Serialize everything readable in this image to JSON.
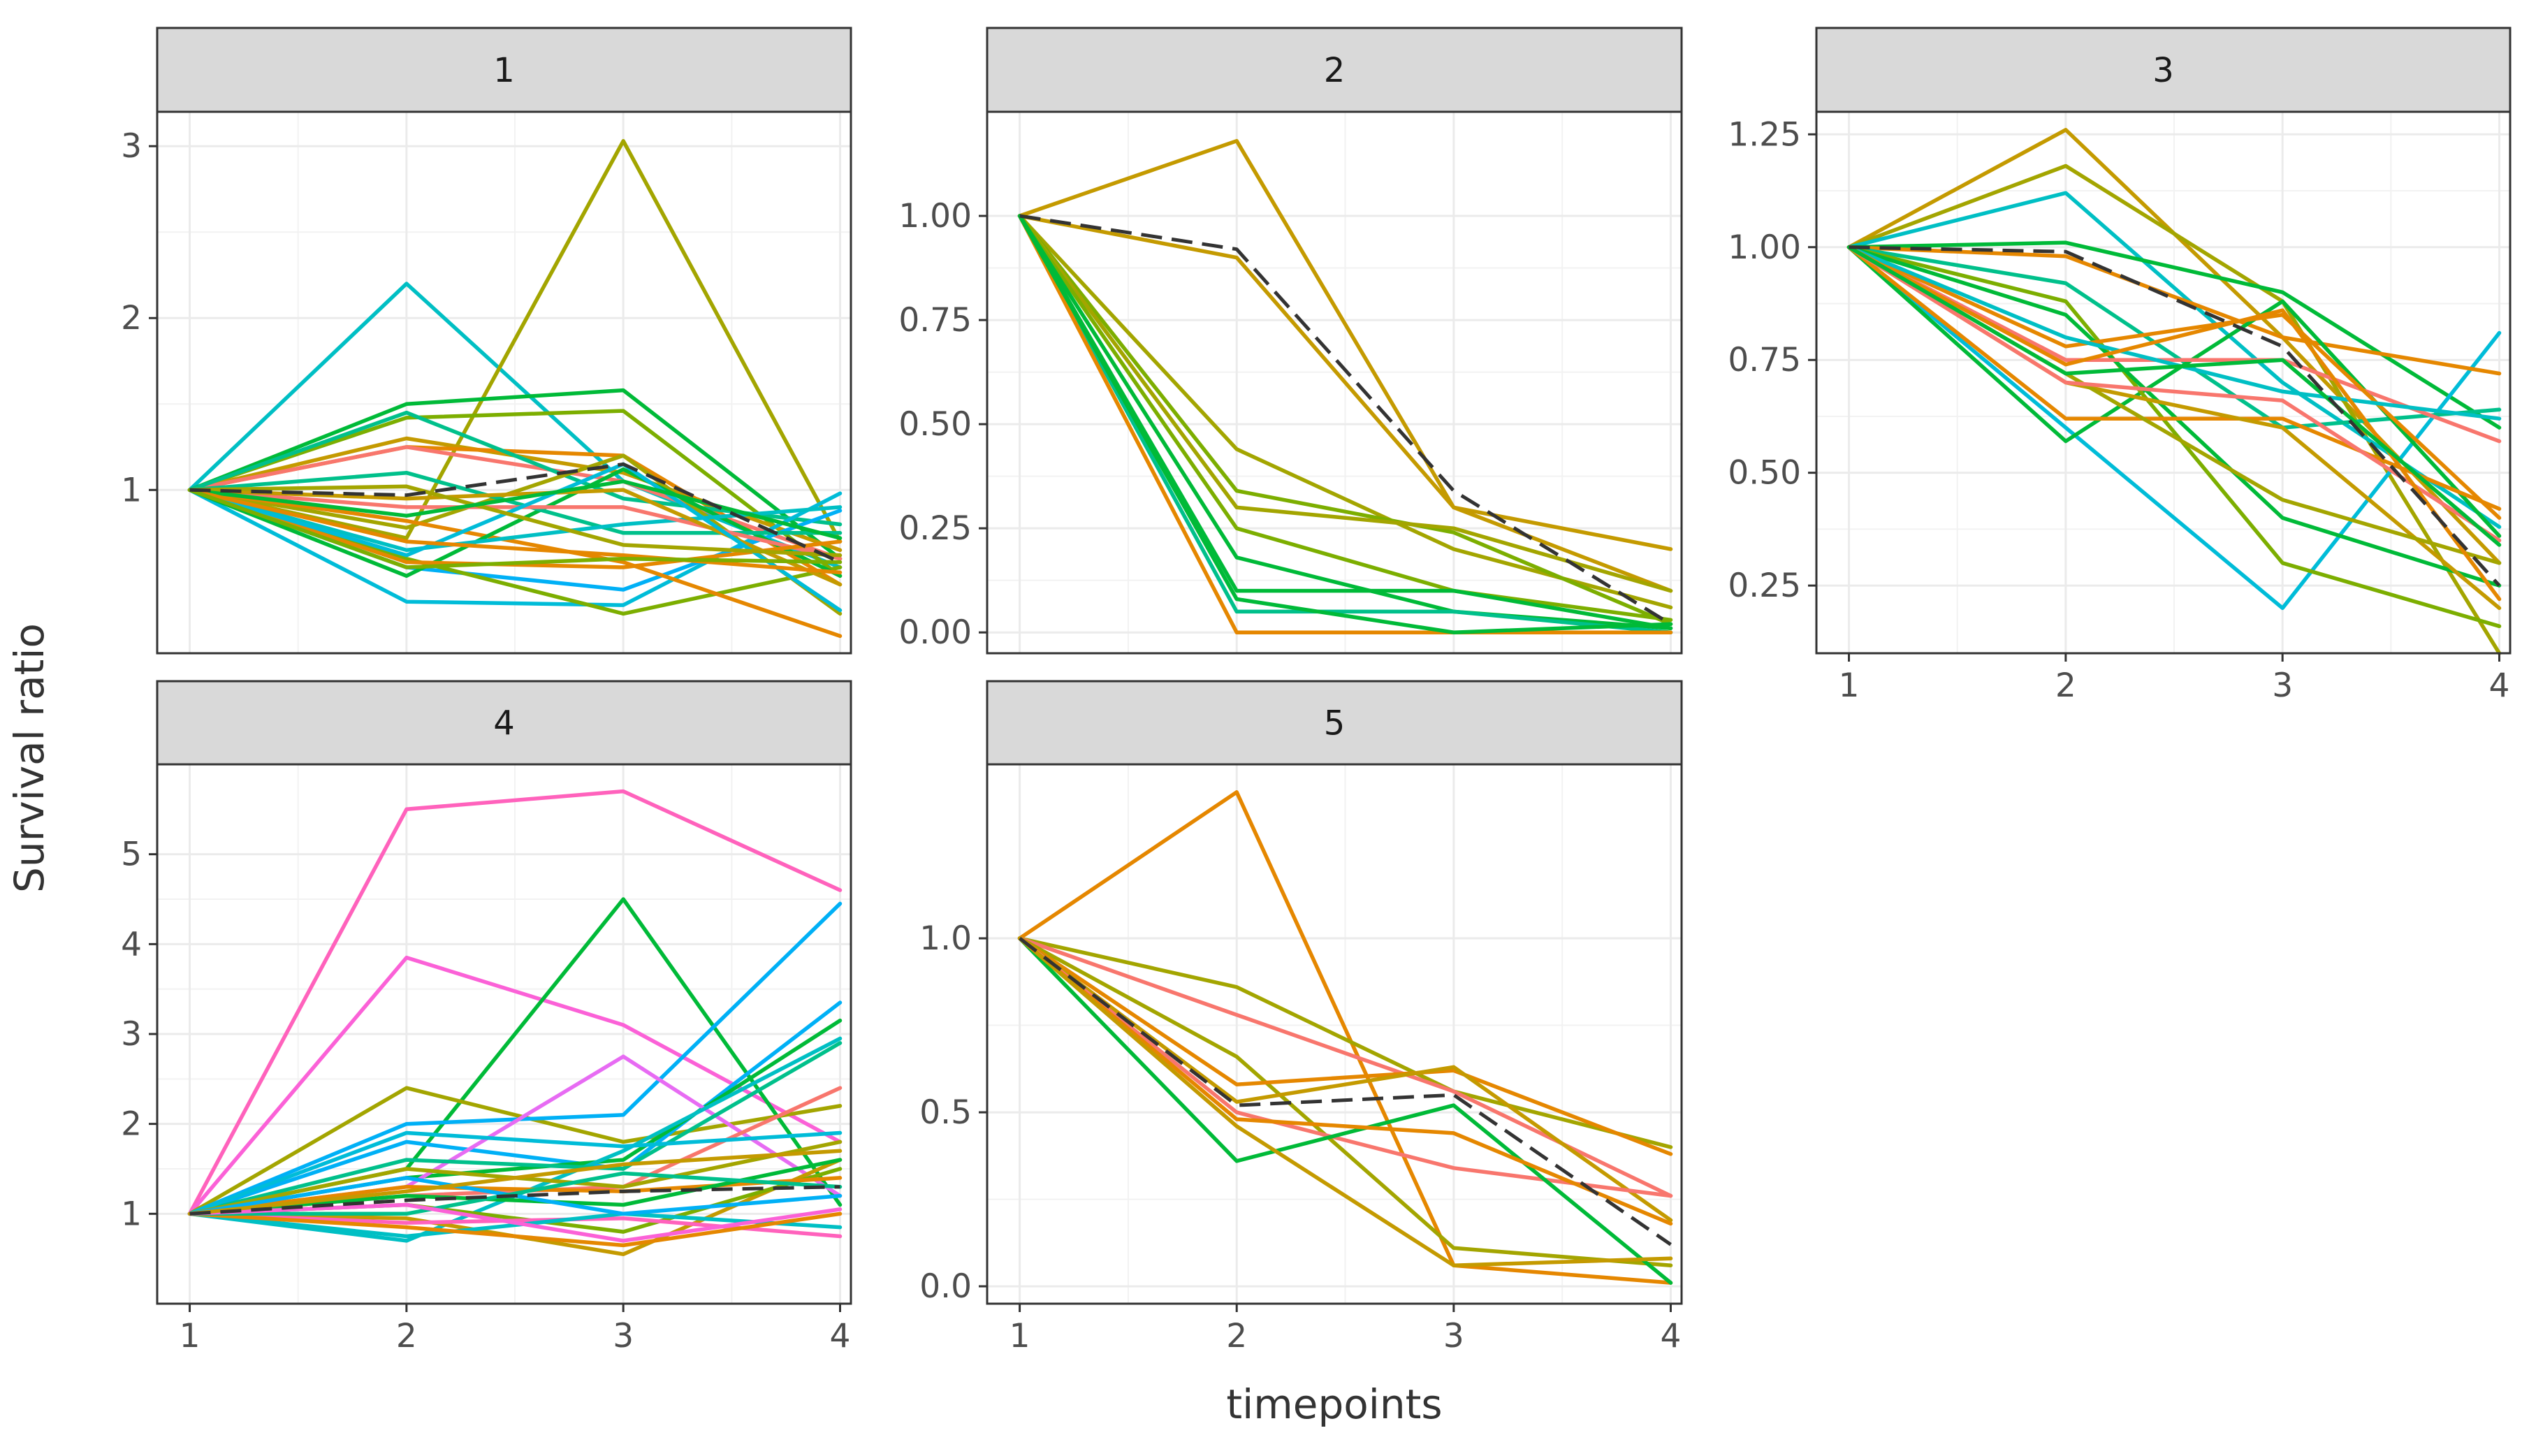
{
  "chart_data": {
    "type": "line",
    "xlabel": "timepoints",
    "ylabel": "Survival ratio",
    "x": [
      1,
      2,
      3,
      4
    ],
    "panels": [
      {
        "label": "1",
        "ylim": [
          0.05,
          3.2
        ],
        "yticks": [
          1,
          2,
          3
        ],
        "ytick_labels": [
          "1",
          "2",
          "3"
        ],
        "mean": [
          1.0,
          0.97,
          1.15,
          0.58
        ],
        "series": [
          {
            "color": "#00BFC4",
            "values": [
              1.0,
              2.2,
              1.05,
              0.55
            ]
          },
          {
            "color": "#A3A500",
            "values": [
              1.0,
              0.72,
              3.03,
              0.7
            ]
          },
          {
            "color": "#00BA38",
            "values": [
              1.0,
              1.5,
              1.58,
              0.6
            ]
          },
          {
            "color": "#7CAE00",
            "values": [
              1.0,
              1.42,
              1.46,
              0.5
            ]
          },
          {
            "color": "#C49A00",
            "values": [
              1.0,
              1.3,
              1.1,
              0.65
            ]
          },
          {
            "color": "#E58700",
            "values": [
              1.0,
              1.25,
              1.2,
              0.45
            ]
          },
          {
            "color": "#F8766D",
            "values": [
              1.0,
              1.25,
              1.05,
              0.6
            ]
          },
          {
            "color": "#00C08B",
            "values": [
              1.0,
              1.45,
              0.95,
              0.8
            ]
          },
          {
            "color": "#00BCD8",
            "values": [
              1.0,
              0.35,
              0.33,
              0.98
            ]
          },
          {
            "color": "#00B0F6",
            "values": [
              1.0,
              0.55,
              0.42,
              0.88
            ]
          },
          {
            "color": "#7CAE00",
            "values": [
              1.0,
              0.6,
              0.28,
              0.55
            ]
          },
          {
            "color": "#A3A500",
            "values": [
              1.0,
              0.78,
              1.2,
              0.28
            ]
          },
          {
            "color": "#E58700",
            "values": [
              1.0,
              0.82,
              0.58,
              0.15
            ]
          },
          {
            "color": "#00BA38",
            "values": [
              1.0,
              0.5,
              1.12,
              0.5
            ]
          },
          {
            "color": "#00C08B",
            "values": [
              1.0,
              1.1,
              0.75,
              0.75
            ]
          },
          {
            "color": "#00BFC4",
            "values": [
              1.0,
              0.65,
              0.8,
              0.9
            ]
          },
          {
            "color": "#F8766D",
            "values": [
              1.0,
              0.9,
              0.9,
              0.6
            ]
          },
          {
            "color": "#C49A00",
            "values": [
              1.0,
              0.95,
              1.0,
              0.45
            ]
          },
          {
            "color": "#E58700",
            "values": [
              1.0,
              0.58,
              0.55,
              0.7
            ]
          },
          {
            "color": "#00BCD8",
            "values": [
              1.0,
              0.62,
              1.15,
              0.3
            ]
          },
          {
            "color": "#A3A500",
            "values": [
              1.0,
              1.02,
              0.68,
              0.62
            ]
          },
          {
            "color": "#00BA38",
            "values": [
              1.0,
              0.85,
              1.05,
              0.72
            ]
          },
          {
            "color": "#E58700",
            "values": [
              1.0,
              0.7,
              0.62,
              0.52
            ]
          },
          {
            "color": "#7CAE00",
            "values": [
              1.0,
              0.55,
              0.6,
              0.58
            ]
          }
        ]
      },
      {
        "label": "2",
        "ylim": [
          -0.05,
          1.25
        ],
        "yticks": [
          0.0,
          0.25,
          0.5,
          0.75,
          1.0
        ],
        "ytick_labels": [
          "0.00",
          "0.25",
          "0.50",
          "0.75",
          "1.00"
        ],
        "mean": [
          1.0,
          0.92,
          0.34,
          0.02
        ],
        "series": [
          {
            "color": "#C49A00",
            "values": [
              1.0,
              1.18,
              0.3,
              0.2
            ]
          },
          {
            "color": "#C49A00",
            "values": [
              1.0,
              0.9,
              0.3,
              0.1
            ]
          },
          {
            "color": "#A3A500",
            "values": [
              1.0,
              0.44,
              0.2,
              0.06
            ]
          },
          {
            "color": "#7CAE00",
            "values": [
              1.0,
              0.34,
              0.24,
              0.02
            ]
          },
          {
            "color": "#A3A500",
            "values": [
              1.0,
              0.3,
              0.25,
              0.1
            ]
          },
          {
            "color": "#7CAE00",
            "values": [
              1.0,
              0.25,
              0.1,
              0.03
            ]
          },
          {
            "color": "#00BA38",
            "values": [
              1.0,
              0.18,
              0.05,
              0.01
            ]
          },
          {
            "color": "#00BA38",
            "values": [
              1.0,
              0.1,
              0.1,
              0.01
            ]
          },
          {
            "color": "#00C08B",
            "values": [
              1.0,
              0.05,
              0.05,
              0.0
            ]
          },
          {
            "color": "#E58700",
            "values": [
              1.0,
              0.0,
              0.0,
              0.0
            ]
          },
          {
            "color": "#00BA38",
            "values": [
              1.0,
              0.08,
              0.0,
              0.02
            ]
          }
        ]
      },
      {
        "label": "3",
        "ylim": [
          0.1,
          1.3
        ],
        "yticks": [
          0.25,
          0.5,
          0.75,
          1.0,
          1.25
        ],
        "ytick_labels": [
          "0.25",
          "0.50",
          "0.75",
          "1.00",
          "1.25"
        ],
        "mean": [
          1.0,
          0.99,
          0.78,
          0.25
        ],
        "series": [
          {
            "color": "#C49A00",
            "values": [
              1.0,
              1.26,
              0.8,
              0.3
            ]
          },
          {
            "color": "#A3A500",
            "values": [
              1.0,
              1.18,
              0.88,
              0.1
            ]
          },
          {
            "color": "#00BFC4",
            "values": [
              1.0,
              1.12,
              0.7,
              0.38
            ]
          },
          {
            "color": "#00BA38",
            "values": [
              1.0,
              1.01,
              0.9,
              0.6
            ]
          },
          {
            "color": "#00BCD8",
            "values": [
              1.0,
              0.6,
              0.2,
              0.81
            ]
          },
          {
            "color": "#E58700",
            "values": [
              1.0,
              0.98,
              0.8,
              0.72
            ]
          },
          {
            "color": "#00C08B",
            "values": [
              1.0,
              0.92,
              0.6,
              0.64
            ]
          },
          {
            "color": "#00BA38",
            "values": [
              1.0,
              0.57,
              0.88,
              0.36
            ]
          },
          {
            "color": "#7CAE00",
            "values": [
              1.0,
              0.88,
              0.3,
              0.16
            ]
          },
          {
            "color": "#00BA38",
            "values": [
              1.0,
              0.85,
              0.4,
              0.25
            ]
          },
          {
            "color": "#F8766D",
            "values": [
              1.0,
              0.75,
              0.75,
              0.57
            ]
          },
          {
            "color": "#E58700",
            "values": [
              1.0,
              0.62,
              0.62,
              0.42
            ]
          },
          {
            "color": "#C49A00",
            "values": [
              1.0,
              0.7,
              0.6,
              0.2
            ]
          },
          {
            "color": "#E58700",
            "values": [
              1.0,
              0.78,
              0.85,
              0.4
            ]
          },
          {
            "color": "#A3A500",
            "values": [
              1.0,
              0.72,
              0.44,
              0.3
            ]
          },
          {
            "color": "#00BFC4",
            "values": [
              1.0,
              0.8,
              0.68,
              0.62
            ]
          },
          {
            "color": "#F8766D",
            "values": [
              1.0,
              0.7,
              0.66,
              0.35
            ]
          },
          {
            "color": "#E58700",
            "values": [
              1.0,
              0.74,
              0.86,
              0.22
            ]
          },
          {
            "color": "#00BA38",
            "values": [
              1.0,
              0.72,
              0.75,
              0.34
            ]
          }
        ]
      },
      {
        "label": "4",
        "ylim": [
          0.0,
          6.0
        ],
        "yticks": [
          1,
          2,
          3,
          4,
          5
        ],
        "ytick_labels": [
          "1",
          "2",
          "3",
          "4",
          "5"
        ],
        "mean": [
          1.0,
          1.15,
          1.25,
          1.3
        ],
        "series": [
          {
            "color": "#FF62BC",
            "values": [
              1.0,
              5.5,
              5.7,
              4.6
            ]
          },
          {
            "color": "#FB61D7",
            "values": [
              1.0,
              3.85,
              3.1,
              1.8
            ]
          },
          {
            "color": "#00BA38",
            "values": [
              1.0,
              1.5,
              4.5,
              1.1
            ]
          },
          {
            "color": "#A3A500",
            "values": [
              1.0,
              2.4,
              1.8,
              2.2
            ]
          },
          {
            "color": "#00B0F6",
            "values": [
              1.0,
              2.0,
              2.1,
              4.45
            ]
          },
          {
            "color": "#00B0F6",
            "values": [
              1.0,
              1.8,
              1.5,
              3.35
            ]
          },
          {
            "color": "#00BA38",
            "values": [
              1.0,
              1.4,
              1.6,
              3.15
            ]
          },
          {
            "color": "#E76BF3",
            "values": [
              1.0,
              1.3,
              2.75,
              1.2
            ]
          },
          {
            "color": "#00BFC4",
            "values": [
              1.0,
              0.7,
              1.7,
              2.95
            ]
          },
          {
            "color": "#00C08B",
            "values": [
              1.0,
              1.6,
              1.5,
              2.9
            ]
          },
          {
            "color": "#F8766D",
            "values": [
              1.0,
              1.2,
              1.3,
              2.4
            ]
          },
          {
            "color": "#00BCD8",
            "values": [
              1.0,
              1.9,
              1.75,
              1.9
            ]
          },
          {
            "color": "#C49A00",
            "values": [
              1.0,
              0.95,
              0.55,
              1.6
            ]
          },
          {
            "color": "#7CAE00",
            "values": [
              1.0,
              1.1,
              0.8,
              1.5
            ]
          },
          {
            "color": "#FF62BC",
            "values": [
              1.0,
              0.9,
              0.95,
              0.75
            ]
          },
          {
            "color": "#E58700",
            "values": [
              1.0,
              1.3,
              1.25,
              1.4
            ]
          },
          {
            "color": "#00BFC4",
            "values": [
              1.0,
              0.75,
              1.0,
              0.85
            ]
          },
          {
            "color": "#A3A500",
            "values": [
              1.0,
              1.5,
              1.3,
              1.8
            ]
          },
          {
            "color": "#00BA38",
            "values": [
              1.0,
              1.2,
              1.1,
              1.6
            ]
          },
          {
            "color": "#00B0F6",
            "values": [
              1.0,
              1.4,
              1.0,
              1.2
            ]
          },
          {
            "color": "#E58700",
            "values": [
              1.0,
              0.85,
              0.65,
              1.0
            ]
          },
          {
            "color": "#00C08B",
            "values": [
              1.0,
              1.0,
              1.45,
              1.3
            ]
          },
          {
            "color": "#FB61D7",
            "values": [
              1.0,
              1.1,
              0.7,
              1.05
            ]
          },
          {
            "color": "#C49A00",
            "values": [
              1.0,
              1.25,
              1.55,
              1.7
            ]
          }
        ]
      },
      {
        "label": "5",
        "ylim": [
          -0.05,
          1.5
        ],
        "yticks": [
          0.0,
          0.5,
          1.0
        ],
        "ytick_labels": [
          "0.0",
          "0.5",
          "1.0"
        ],
        "mean": [
          1.0,
          0.52,
          0.55,
          0.12
        ],
        "series": [
          {
            "color": "#E58700",
            "values": [
              1.0,
              1.42,
              0.06,
              0.01
            ]
          },
          {
            "color": "#A3A500",
            "values": [
              1.0,
              0.86,
              0.56,
              0.4
            ]
          },
          {
            "color": "#F8766D",
            "values": [
              1.0,
              0.78,
              0.56,
              0.26
            ]
          },
          {
            "color": "#A3A500",
            "values": [
              1.0,
              0.66,
              0.11,
              0.06
            ]
          },
          {
            "color": "#E58700",
            "values": [
              1.0,
              0.58,
              0.62,
              0.38
            ]
          },
          {
            "color": "#C49A00",
            "values": [
              1.0,
              0.53,
              0.63,
              0.19
            ]
          },
          {
            "color": "#F8766D",
            "values": [
              1.0,
              0.5,
              0.34,
              0.26
            ]
          },
          {
            "color": "#00BA38",
            "values": [
              1.0,
              0.36,
              0.52,
              0.01
            ]
          },
          {
            "color": "#E58700",
            "values": [
              1.0,
              0.48,
              0.44,
              0.18
            ]
          },
          {
            "color": "#C49A00",
            "values": [
              1.0,
              0.46,
              0.06,
              0.08
            ]
          }
        ]
      }
    ]
  }
}
